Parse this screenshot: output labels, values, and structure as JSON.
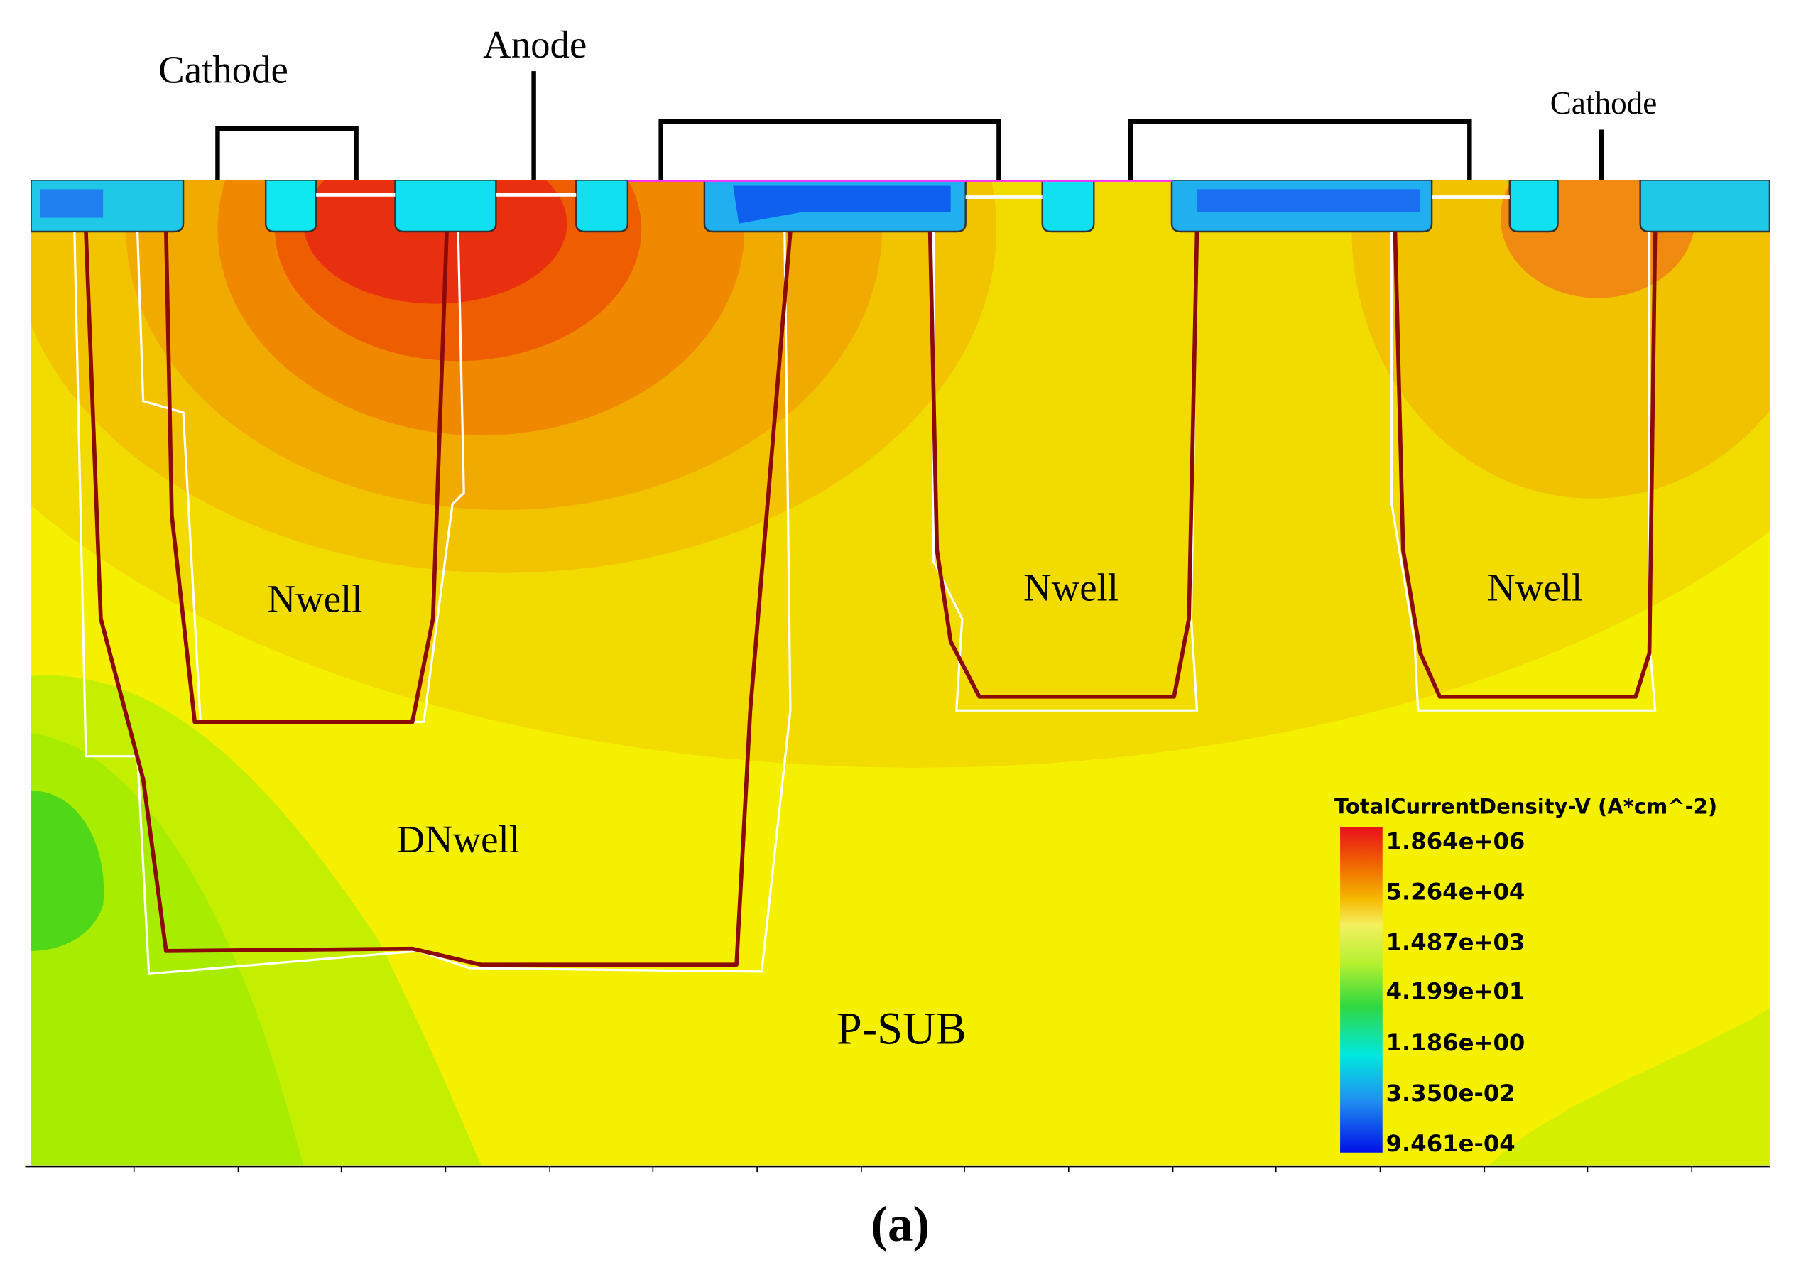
{
  "labels": {
    "cathode_left": "Cathode",
    "anode": "Anode",
    "cathode_right": "Cathode",
    "nwell_1": "Nwell",
    "nwell_2": "Nwell",
    "nwell_3": "Nwell",
    "dnwell": "DNwell",
    "psub": "P-SUB"
  },
  "legend": {
    "title": "TotalCurrentDensity-V (A*cm^-2)",
    "labels": [
      "1.864e+06",
      "5.264e+04",
      "1.487e+03",
      "4.199e+01",
      "1.186e+00",
      "3.350e-02",
      "9.461e-04"
    ]
  },
  "caption": "(a)"
}
